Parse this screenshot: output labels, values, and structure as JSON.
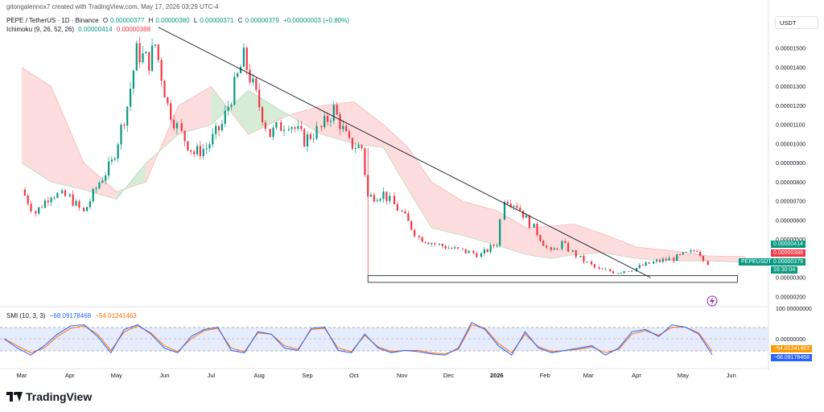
{
  "header": {
    "created": "gitongalennox7 created with TradingView.com, May 17, 2026 03:29 UTC-4",
    "symbol": "PEPE / TetherUS · 1D · Binance",
    "o_label": "O",
    "o": "0.00000377",
    "h_label": "H",
    "h": "0.00000380",
    "l_label": "L",
    "l": "0.00000371",
    "c_label": "C",
    "c": "0.00000379",
    "change": "+0.00000003 (+0.80%)",
    "ichimoku_label": "Ichimoku (9, 26, 52, 26)",
    "ichimoku_v1": "0.00000414",
    "ichimoku_v2": "0.00000388",
    "currency": "USDT"
  },
  "price_axis": {
    "ticks": [
      "0.00001500",
      "0.00001400",
      "0.00001300",
      "0.00001200",
      "0.00001100",
      "0.00001000",
      "0.00000900",
      "0.00000800",
      "0.00000700",
      "0.00000600",
      "0.00000500",
      "0.00000300",
      "0.00000200"
    ],
    "badge_cloud_top": "0.00000414",
    "badge_cloud_bottom": "0.00000388",
    "badge_symbol": "PEPEUSDT",
    "badge_price": "0.00000379",
    "badge_countdown": "16:30:04"
  },
  "time_axis": [
    "Mar",
    "Apr",
    "May",
    "Jun",
    "Jul",
    "Aug",
    "Sep",
    "Oct",
    "Nov",
    "Dec",
    "2026",
    "Feb",
    "Mar",
    "Apr",
    "May",
    "Jun"
  ],
  "smi": {
    "label": "SMI (10, 3, 3)",
    "v1": "−68.09178468",
    "v2": "−54.01241463",
    "ticks": [
      "100.00000000",
      "0.00000000"
    ],
    "badge1": "−54.01241463",
    "badge2": "−68.09178468"
  },
  "brand": "TradingView",
  "colors": {
    "up": "#089981",
    "down": "#f23645",
    "cloud_green": "#c8e6c9",
    "cloud_red": "#fbd0d0",
    "smi1": "#2962ff",
    "smi2": "#ff6d00",
    "band": "#dbe4fb"
  },
  "chart_data": {
    "type": "candlestick",
    "x_unit": "daily candles, Mar 2025 – May 2026",
    "price_points": [
      [
        "2025-03-01",
        7.6e-06
      ],
      [
        "2025-03-10",
        6.4e-06
      ],
      [
        "2025-03-20",
        7.4e-06
      ],
      [
        "2025-04-01",
        7.2e-06
      ],
      [
        "2025-04-10",
        6.4e-06
      ],
      [
        "2025-04-20",
        8e-06
      ],
      [
        "2025-04-28",
        9e-06
      ],
      [
        "2025-05-08",
        1.2e-05
      ],
      [
        "2025-05-14",
        1.48e-05
      ],
      [
        "2025-05-22",
        1.43e-05
      ],
      [
        "2025-05-26",
        1.52e-05
      ],
      [
        "2025-06-03",
        1.2e-05
      ],
      [
        "2025-06-12",
        1.05e-05
      ],
      [
        "2025-06-20",
        9.5e-06
      ],
      [
        "2025-06-28",
        9.8e-06
      ],
      [
        "2025-07-08",
        1.1e-05
      ],
      [
        "2025-07-16",
        1.3e-05
      ],
      [
        "2025-07-22",
        1.45e-05
      ],
      [
        "2025-07-30",
        1.25e-05
      ],
      [
        "2025-08-08",
        1.05e-05
      ],
      [
        "2025-08-20",
        1.12e-05
      ],
      [
        "2025-08-30",
        1.02e-05
      ],
      [
        "2025-09-10",
        1.08e-05
      ],
      [
        "2025-09-18",
        1.18e-05
      ],
      [
        "2025-09-28",
        1e-05
      ],
      [
        "2025-10-06",
        9.8e-06
      ],
      [
        "2025-10-10",
        7.2e-06
      ],
      [
        "2025-10-20",
        7.4e-06
      ],
      [
        "2025-11-01",
        6.4e-06
      ],
      [
        "2025-11-12",
        5.1e-06
      ],
      [
        "2025-11-25",
        4.7e-06
      ],
      [
        "2025-12-10",
        4.4e-06
      ],
      [
        "2025-12-22",
        4.2e-06
      ],
      [
        "2026-01-01",
        4.8e-06
      ],
      [
        "2026-01-06",
        7.2e-06
      ],
      [
        "2026-01-14",
        6.8e-06
      ],
      [
        "2026-01-25",
        5.6e-06
      ],
      [
        "2026-02-05",
        4.3e-06
      ],
      [
        "2026-02-12",
        4.8e-06
      ],
      [
        "2026-02-24",
        4e-06
      ],
      [
        "2026-03-08",
        3.4e-06
      ],
      [
        "2026-03-20",
        3.3e-06
      ],
      [
        "2026-04-01",
        3.5e-06
      ],
      [
        "2026-04-12",
        3.8e-06
      ],
      [
        "2026-04-25",
        4e-06
      ],
      [
        "2026-05-06",
        4.3e-06
      ],
      [
        "2026-05-10",
        4.5e-06
      ],
      [
        "2026-05-17",
        3.79e-06
      ]
    ],
    "cloud_span_a": [
      [
        "2025-03-01",
        1.4e-05
      ],
      [
        "2025-03-20",
        1.3e-05
      ],
      [
        "2025-04-10",
        9e-06
      ],
      [
        "2025-05-01",
        7.5e-06
      ],
      [
        "2025-05-20",
        8e-06
      ],
      [
        "2025-06-10",
        1.2e-05
      ],
      [
        "2025-07-01",
        1.3e-05
      ],
      [
        "2025-07-25",
        1.05e-05
      ],
      [
        "2025-08-20",
        1.15e-05
      ],
      [
        "2025-09-10",
        1.2e-05
      ],
      [
        "2025-10-01",
        1.22e-05
      ],
      [
        "2025-10-20",
        1.1e-05
      ],
      [
        "2025-11-05",
        9.8e-06
      ],
      [
        "2025-11-20",
        8e-06
      ],
      [
        "2025-12-10",
        7e-06
      ],
      [
        "2026-01-01",
        6.5e-06
      ],
      [
        "2026-01-20",
        5.6e-06
      ],
      [
        "2026-02-05",
        5.7e-06
      ],
      [
        "2026-02-20",
        5.8e-06
      ],
      [
        "2026-03-10",
        5.3e-06
      ],
      [
        "2026-04-01",
        4.6e-06
      ],
      [
        "2026-04-25",
        4.4e-06
      ],
      [
        "2026-05-17",
        4.14e-06
      ],
      [
        "2026-06-10",
        4.1e-06
      ]
    ],
    "cloud_span_b": [
      [
        "2025-03-01",
        9e-06
      ],
      [
        "2025-03-20",
        8e-06
      ],
      [
        "2025-04-10",
        7.6e-06
      ],
      [
        "2025-05-01",
        7.1e-06
      ],
      [
        "2025-05-20",
        9e-06
      ],
      [
        "2025-06-10",
        1.05e-05
      ],
      [
        "2025-07-01",
        1.1e-05
      ],
      [
        "2025-07-25",
        1.28e-05
      ],
      [
        "2025-08-20",
        1.15e-05
      ],
      [
        "2025-09-10",
        1.05e-05
      ],
      [
        "2025-10-01",
        1e-05
      ],
      [
        "2025-10-20",
        9.8e-06
      ],
      [
        "2025-11-05",
        7.6e-06
      ],
      [
        "2025-11-20",
        5.6e-06
      ],
      [
        "2025-12-10",
        5.2e-06
      ],
      [
        "2026-01-01",
        4.7e-06
      ],
      [
        "2026-01-20",
        4.2e-06
      ],
      [
        "2026-02-05",
        4e-06
      ],
      [
        "2026-02-20",
        4.2e-06
      ],
      [
        "2026-03-10",
        4.3e-06
      ],
      [
        "2026-04-01",
        4e-06
      ],
      [
        "2026-04-25",
        3.88e-06
      ],
      [
        "2026-05-17",
        3.88e-06
      ],
      [
        "2026-06-10",
        3.8e-06
      ]
    ],
    "trendline": [
      [
        "2025-05-28",
        1.61e-05
      ],
      [
        "2026-04-10",
        3e-06
      ]
    ],
    "support_box": {
      "from": "2025-10-10",
      "to": "2026-06-05",
      "top": 3.1e-06,
      "bottom": 2.75e-06
    },
    "smi_values": [
      0,
      -40,
      -70,
      -30,
      20,
      55,
      60,
      10,
      -60,
      40,
      60,
      20,
      -40,
      -60,
      10,
      40,
      50,
      -50,
      -60,
      30,
      20,
      -40,
      -50,
      45,
      50,
      -50,
      -60,
      20,
      -40,
      -60,
      -50,
      -55,
      -65,
      -70,
      -40,
      70,
      40,
      -30,
      -70,
      30,
      -40,
      -60,
      -50,
      -40,
      -30,
      -70,
      -40,
      30,
      40,
      10,
      60,
      50,
      20,
      -68
    ],
    "smi_signal": [
      0,
      -30,
      -60,
      -40,
      10,
      45,
      55,
      20,
      -50,
      30,
      55,
      25,
      -30,
      -55,
      0,
      35,
      45,
      -40,
      -55,
      25,
      20,
      -30,
      -45,
      40,
      45,
      -40,
      -55,
      15,
      -35,
      -55,
      -50,
      -50,
      -60,
      -65,
      -45,
      60,
      45,
      -20,
      -60,
      20,
      -35,
      -55,
      -50,
      -45,
      -35,
      -60,
      -45,
      20,
      35,
      15,
      50,
      50,
      25,
      -54
    ]
  }
}
